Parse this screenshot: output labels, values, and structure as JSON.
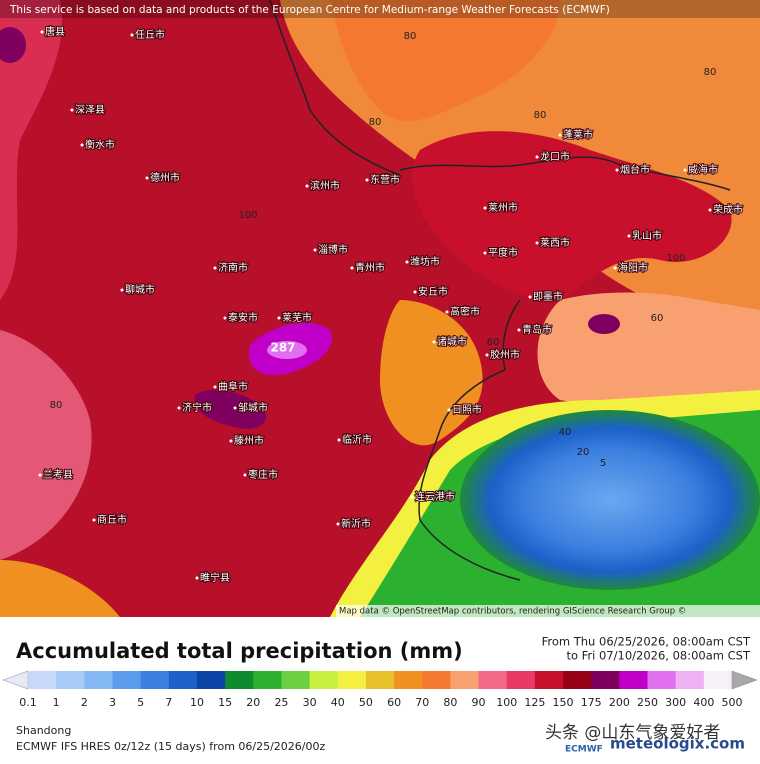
{
  "header": {
    "notice": "This service is based on data and products of the European Centre for Medium-range Weather Forecasts (ECMWF)"
  },
  "map": {
    "cities": [
      "唐县",
      "任丘市",
      "深泽县",
      "衡水市",
      "德州市",
      "济南市",
      "泰安市",
      "莱芜市",
      "淄博市",
      "东营市",
      "潍坊市",
      "青州市",
      "滨州市",
      "聊城市",
      "济宁市",
      "曲阜市",
      "邹城市",
      "临沂市",
      "日照市",
      "青岛市",
      "胶州市",
      "平度市",
      "莱州市",
      "龙口市",
      "蓬莱市",
      "烟台市",
      "威海市",
      "莱西市",
      "海阳市",
      "乳山市",
      "荣成市",
      "枣庄市",
      "滕州市",
      "连云港市",
      "新沂市",
      "即墨市",
      "安丘市",
      "诸城市",
      "高密市",
      "兰考县",
      "商丘市",
      "睢宁县"
    ],
    "contour_labels": [
      "80",
      "80",
      "80",
      "80",
      "80",
      "60",
      "40",
      "20",
      "5",
      "100",
      "100",
      "60"
    ],
    "peak_label": "287",
    "attribution": "Map data © OpenStreetMap contributors, rendering GIScience Research Group ©"
  },
  "legend": {
    "title": "Accumulated total precipitation (mm)",
    "period_from": "From Thu 06/25/2026, 08:00am CST",
    "period_to": "to Fri 07/10/2026, 08:00am CST",
    "levels": [
      0.1,
      1,
      2,
      3,
      5,
      7,
      10,
      15,
      20,
      25,
      30,
      40,
      50,
      60,
      70,
      80,
      90,
      100,
      125,
      150,
      175,
      200,
      250,
      300,
      400,
      500
    ],
    "under_color": "#e8e8f8",
    "colors": [
      "#c8d8f8",
      "#a8ccf8",
      "#84b8f4",
      "#5c9cec",
      "#3c80e0",
      "#1c60c8",
      "#0c44a8",
      "#108a30",
      "#2cb030",
      "#6ad040",
      "#c8f040",
      "#f4f040",
      "#e8c02c",
      "#f09020",
      "#f47830",
      "#f8a070",
      "#f06a88",
      "#e83a64",
      "#c8102c",
      "#980018",
      "#800060",
      "#c000c8",
      "#e070f0",
      "#f0b0f4",
      "#f8f0f8"
    ],
    "over_color": "#a8a8a8"
  },
  "footer": {
    "region": "Shandong",
    "model": "ECMWF IFS HRES 0z/12z (15 days) from 06/25/2026/00z",
    "watermark": "头条 @山东气象爱好者",
    "logo": "ECMWF",
    "site": "meteologix.com"
  }
}
